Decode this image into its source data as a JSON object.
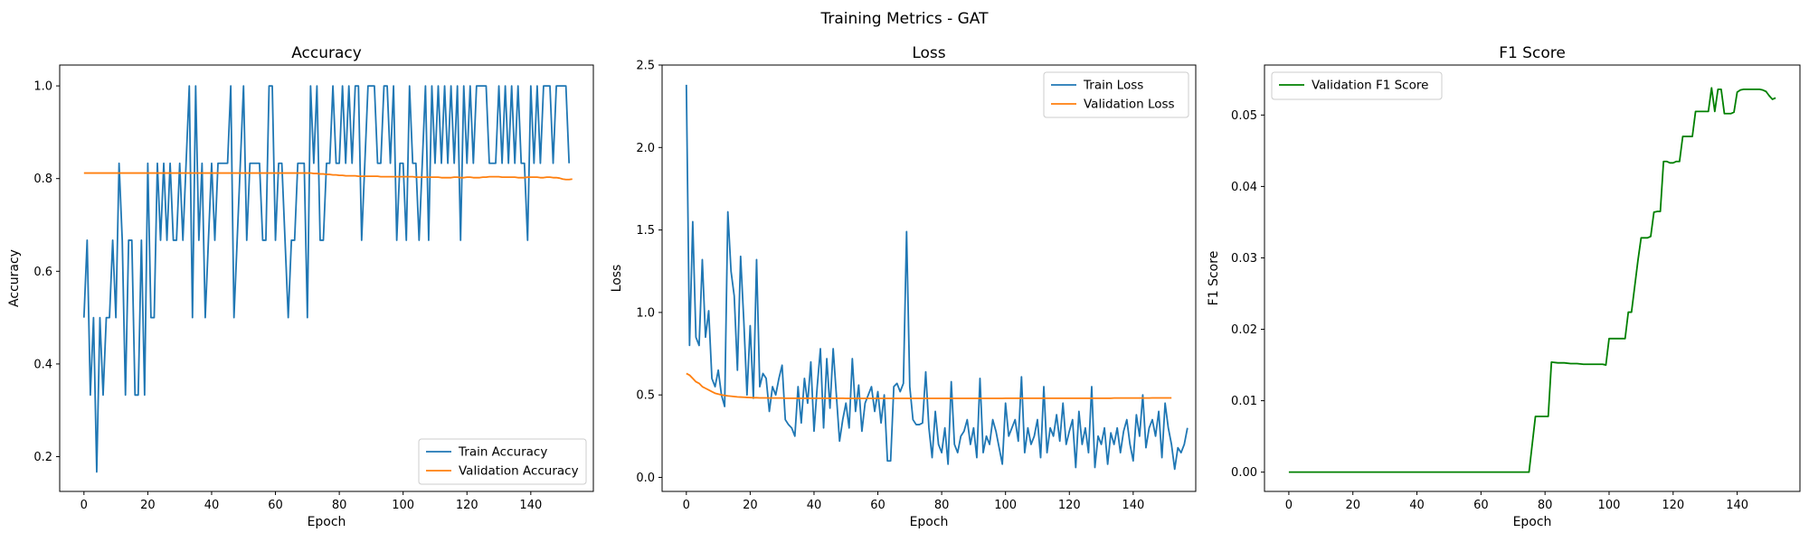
{
  "figure": {
    "suptitle": "Training Metrics - GAT"
  },
  "chart_data": [
    {
      "type": "line",
      "title": "Accuracy",
      "xlabel": "Epoch",
      "ylabel": "Accuracy",
      "xlim": [
        -7.6,
        159.6
      ],
      "ylim": [
        0.125,
        1.045
      ],
      "xticks": [
        0,
        20,
        40,
        60,
        80,
        100,
        120,
        140
      ],
      "yticks": [
        0.2,
        0.4,
        0.6,
        0.8,
        1.0
      ],
      "ytick_labels": [
        "0.2",
        "0.4",
        "0.6",
        "0.8",
        "1.0"
      ],
      "legend": "lower-right",
      "grid": false,
      "series": [
        {
          "name": "Train Accuracy",
          "color": "#1f77b4",
          "x_start": 0,
          "values": [
            0.5,
            0.667,
            0.333,
            0.5,
            0.167,
            0.5,
            0.333,
            0.5,
            0.5,
            0.667,
            0.5,
            0.833,
            0.667,
            0.333,
            0.667,
            0.667,
            0.333,
            0.333,
            0.667,
            0.333,
            0.833,
            0.5,
            0.5,
            0.833,
            0.667,
            0.833,
            0.667,
            0.833,
            0.667,
            0.667,
            0.833,
            0.667,
            0.833,
            1.0,
            0.5,
            1.0,
            0.667,
            0.833,
            0.5,
            0.667,
            0.833,
            0.667,
            0.833,
            0.833,
            0.833,
            0.833,
            1.0,
            0.5,
            0.667,
            0.833,
            1.0,
            0.667,
            0.833,
            0.833,
            0.833,
            0.833,
            0.667,
            0.667,
            1.0,
            1.0,
            0.667,
            0.833,
            0.833,
            0.667,
            0.5,
            0.667,
            0.667,
            0.833,
            0.833,
            0.833,
            0.5,
            1.0,
            0.833,
            1.0,
            0.667,
            0.667,
            0.833,
            0.833,
            1.0,
            0.833,
            0.833,
            1.0,
            0.833,
            1.0,
            0.833,
            1.0,
            1.0,
            0.667,
            0.833,
            1.0,
            1.0,
            1.0,
            0.833,
            0.833,
            1.0,
            1.0,
            0.833,
            1.0,
            0.667,
            0.833,
            0.833,
            0.667,
            1.0,
            0.833,
            0.833,
            0.667,
            0.833,
            1.0,
            0.667,
            1.0,
            0.833,
            1.0,
            0.833,
            1.0,
            0.833,
            1.0,
            0.833,
            1.0,
            0.667,
            1.0,
            0.833,
            1.0,
            0.833,
            1.0,
            1.0,
            1.0,
            1.0,
            0.833,
            0.833,
            0.833,
            1.0,
            0.833,
            1.0,
            0.833,
            1.0,
            0.833,
            1.0,
            0.833,
            0.833,
            0.667,
            1.0,
            0.833,
            1.0,
            0.833,
            1.0,
            1.0,
            1.0,
            0.833,
            1.0,
            1.0,
            1.0,
            1.0,
            0.833
          ]
        },
        {
          "name": "Validation Accuracy",
          "color": "#ff7f0e",
          "x_start": 0,
          "values": [
            0.812,
            0.812,
            0.812,
            0.812,
            0.812,
            0.812,
            0.812,
            0.812,
            0.812,
            0.812,
            0.812,
            0.812,
            0.812,
            0.812,
            0.812,
            0.812,
            0.812,
            0.812,
            0.812,
            0.812,
            0.812,
            0.812,
            0.812,
            0.812,
            0.812,
            0.812,
            0.812,
            0.812,
            0.812,
            0.812,
            0.812,
            0.812,
            0.812,
            0.812,
            0.812,
            0.812,
            0.812,
            0.812,
            0.812,
            0.812,
            0.812,
            0.812,
            0.812,
            0.812,
            0.812,
            0.812,
            0.812,
            0.812,
            0.812,
            0.812,
            0.812,
            0.812,
            0.812,
            0.812,
            0.812,
            0.812,
            0.812,
            0.812,
            0.812,
            0.812,
            0.812,
            0.812,
            0.812,
            0.812,
            0.812,
            0.812,
            0.812,
            0.812,
            0.812,
            0.812,
            0.812,
            0.812,
            0.811,
            0.811,
            0.81,
            0.81,
            0.809,
            0.809,
            0.808,
            0.808,
            0.807,
            0.807,
            0.806,
            0.806,
            0.806,
            0.806,
            0.805,
            0.805,
            0.805,
            0.805,
            0.805,
            0.805,
            0.805,
            0.804,
            0.804,
            0.804,
            0.804,
            0.804,
            0.804,
            0.804,
            0.804,
            0.804,
            0.804,
            0.804,
            0.803,
            0.803,
            0.803,
            0.803,
            0.803,
            0.803,
            0.803,
            0.803,
            0.802,
            0.802,
            0.802,
            0.802,
            0.803,
            0.803,
            0.802,
            0.802,
            0.803,
            0.803,
            0.802,
            0.802,
            0.802,
            0.803,
            0.803,
            0.804,
            0.804,
            0.804,
            0.804,
            0.803,
            0.803,
            0.803,
            0.803,
            0.803,
            0.802,
            0.802,
            0.802,
            0.803,
            0.803,
            0.803,
            0.803,
            0.802,
            0.802,
            0.803,
            0.803,
            0.802,
            0.802,
            0.801,
            0.799,
            0.798,
            0.798,
            0.799
          ]
        }
      ]
    },
    {
      "type": "line",
      "title": "Loss",
      "xlabel": "Epoch",
      "ylabel": "Loss",
      "xlim": [
        -7.6,
        159.6
      ],
      "ylim": [
        -0.085,
        2.5
      ],
      "xticks": [
        0,
        20,
        40,
        60,
        80,
        100,
        120,
        140
      ],
      "yticks": [
        0.0,
        0.5,
        1.0,
        1.5,
        2.0,
        2.5
      ],
      "ytick_labels": [
        "0.0",
        "0.5",
        "1.0",
        "1.5",
        "2.0",
        "2.5"
      ],
      "legend": "top-right",
      "grid": false,
      "series": [
        {
          "name": "Train Loss",
          "color": "#1f77b4",
          "x_start": 0,
          "values": [
            2.38,
            0.8,
            1.55,
            0.85,
            0.8,
            1.32,
            0.85,
            1.01,
            0.6,
            0.55,
            0.65,
            0.5,
            0.43,
            1.61,
            1.25,
            1.1,
            0.65,
            1.34,
            0.95,
            0.5,
            0.92,
            0.48,
            1.32,
            0.55,
            0.63,
            0.6,
            0.4,
            0.55,
            0.5,
            0.6,
            0.68,
            0.35,
            0.32,
            0.3,
            0.25,
            0.55,
            0.33,
            0.6,
            0.45,
            0.7,
            0.28,
            0.55,
            0.78,
            0.3,
            0.72,
            0.42,
            0.78,
            0.5,
            0.22,
            0.35,
            0.45,
            0.3,
            0.72,
            0.4,
            0.56,
            0.28,
            0.45,
            0.5,
            0.55,
            0.4,
            0.52,
            0.33,
            0.5,
            0.1,
            0.1,
            0.55,
            0.57,
            0.52,
            0.57,
            1.49,
            0.55,
            0.35,
            0.32,
            0.32,
            0.33,
            0.64,
            0.3,
            0.12,
            0.4,
            0.2,
            0.15,
            0.3,
            0.08,
            0.58,
            0.2,
            0.15,
            0.25,
            0.28,
            0.35,
            0.2,
            0.3,
            0.12,
            0.6,
            0.15,
            0.25,
            0.2,
            0.35,
            0.28,
            0.18,
            0.08,
            0.45,
            0.25,
            0.3,
            0.35,
            0.22,
            0.61,
            0.15,
            0.3,
            0.2,
            0.25,
            0.35,
            0.12,
            0.55,
            0.15,
            0.3,
            0.25,
            0.38,
            0.22,
            0.45,
            0.2,
            0.28,
            0.35,
            0.06,
            0.4,
            0.2,
            0.3,
            0.15,
            0.55,
            0.06,
            0.25,
            0.2,
            0.3,
            0.08,
            0.27,
            0.2,
            0.3,
            0.15,
            0.28,
            0.35,
            0.2,
            0.1,
            0.38,
            0.25,
            0.5,
            0.18,
            0.3,
            0.35,
            0.25,
            0.4,
            0.12,
            0.45,
            0.3,
            0.2,
            0.05,
            0.18,
            0.15,
            0.2,
            0.3
          ]
        },
        {
          "name": "Validation Loss",
          "color": "#ff7f0e",
          "x_start": 0,
          "values": [
            0.63,
            0.62,
            0.6,
            0.58,
            0.57,
            0.55,
            0.54,
            0.53,
            0.52,
            0.51,
            0.505,
            0.5,
            0.497,
            0.494,
            0.492,
            0.49,
            0.488,
            0.487,
            0.486,
            0.485,
            0.484,
            0.483,
            0.483,
            0.482,
            0.482,
            0.482,
            0.481,
            0.481,
            0.481,
            0.481,
            0.481,
            0.48,
            0.48,
            0.48,
            0.48,
            0.48,
            0.48,
            0.48,
            0.48,
            0.48,
            0.48,
            0.48,
            0.48,
            0.48,
            0.48,
            0.48,
            0.48,
            0.48,
            0.48,
            0.48,
            0.479,
            0.479,
            0.479,
            0.479,
            0.479,
            0.479,
            0.479,
            0.479,
            0.479,
            0.479,
            0.479,
            0.479,
            0.479,
            0.479,
            0.479,
            0.479,
            0.479,
            0.479,
            0.479,
            0.479,
            0.479,
            0.479,
            0.479,
            0.479,
            0.479,
            0.479,
            0.479,
            0.479,
            0.479,
            0.479,
            0.479,
            0.479,
            0.479,
            0.479,
            0.479,
            0.479,
            0.479,
            0.479,
            0.479,
            0.479,
            0.479,
            0.479,
            0.479,
            0.479,
            0.479,
            0.479,
            0.479,
            0.479,
            0.479,
            0.479,
            0.48,
            0.48,
            0.48,
            0.48,
            0.48,
            0.48,
            0.48,
            0.48,
            0.48,
            0.48,
            0.48,
            0.48,
            0.48,
            0.48,
            0.48,
            0.48,
            0.48,
            0.48,
            0.48,
            0.48,
            0.48,
            0.48,
            0.48,
            0.48,
            0.48,
            0.48,
            0.48,
            0.48,
            0.48,
            0.48,
            0.48,
            0.48,
            0.48,
            0.48,
            0.481,
            0.481,
            0.481,
            0.481,
            0.481,
            0.481,
            0.481,
            0.481,
            0.481,
            0.481,
            0.481,
            0.481,
            0.482,
            0.482,
            0.482,
            0.482,
            0.482,
            0.482,
            0.482
          ]
        }
      ]
    },
    {
      "type": "line",
      "title": "F1 Score",
      "xlabel": "Epoch",
      "ylabel": "F1 Score",
      "xlim": [
        -7.6,
        159.6
      ],
      "ylim": [
        -0.0027,
        0.057
      ],
      "xticks": [
        0,
        20,
        40,
        60,
        80,
        100,
        120,
        140
      ],
      "yticks": [
        0.0,
        0.01,
        0.02,
        0.03,
        0.04,
        0.05
      ],
      "ytick_labels": [
        "0.00",
        "0.01",
        "0.02",
        "0.03",
        "0.04",
        "0.05"
      ],
      "legend": "top-left",
      "grid": false,
      "series": [
        {
          "name": "Validation F1 Score",
          "color": "#008000",
          "x": [
            0,
            75,
            77,
            81,
            82,
            84,
            86,
            88,
            90,
            92,
            94,
            96,
            98,
            99,
            100,
            104,
            105,
            106,
            107,
            108,
            109,
            110,
            111,
            112,
            113,
            114,
            115,
            116,
            117,
            118,
            119,
            120,
            121,
            122,
            123,
            124,
            125,
            126,
            127,
            128,
            129,
            130,
            131,
            132,
            133,
            134,
            135,
            136,
            137,
            138,
            139,
            140,
            141,
            142,
            143,
            144,
            145,
            146,
            147,
            148,
            149,
            150,
            151,
            152
          ],
          "values": [
            0.0,
            0.0,
            0.0078,
            0.0078,
            0.0154,
            0.0153,
            0.0153,
            0.0152,
            0.0152,
            0.0151,
            0.0151,
            0.0151,
            0.0151,
            0.015,
            0.0187,
            0.0187,
            0.0187,
            0.0224,
            0.0224,
            0.026,
            0.0296,
            0.0328,
            0.0328,
            0.0328,
            0.033,
            0.0364,
            0.0365,
            0.0365,
            0.0435,
            0.0435,
            0.0433,
            0.0433,
            0.0435,
            0.0435,
            0.047,
            0.047,
            0.047,
            0.047,
            0.0505,
            0.0505,
            0.0505,
            0.0505,
            0.0505,
            0.0538,
            0.0505,
            0.0536,
            0.0536,
            0.0502,
            0.0502,
            0.0502,
            0.0504,
            0.0532,
            0.0535,
            0.0536,
            0.0536,
            0.0536,
            0.0536,
            0.0536,
            0.0536,
            0.0535,
            0.0533,
            0.0527,
            0.0522,
            0.0524
          ]
        }
      ]
    }
  ]
}
